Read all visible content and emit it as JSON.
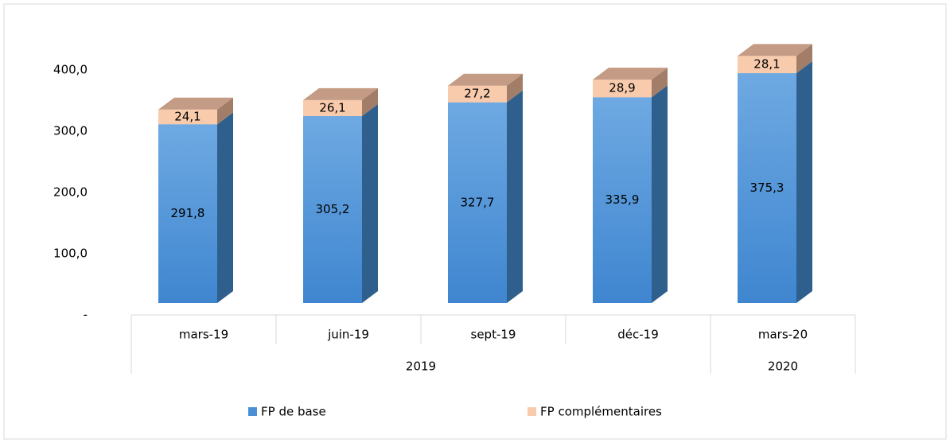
{
  "chart_data": {
    "type": "stacked-bar-3d",
    "categories": [
      "mars-19",
      "juin-19",
      "sept-19",
      "déc-19",
      "mars-20"
    ],
    "group_labels": [
      "2019",
      "2019",
      "2019",
      "2019",
      "2020"
    ],
    "series": [
      {
        "name": "FP de base",
        "color": "#5197dc",
        "side_color": "#2f5f8c",
        "top_color": "#6aa6df",
        "values": [
          291.8,
          305.2,
          327.7,
          335.9,
          375.3
        ],
        "value_labels": [
          "291,8",
          "305,2",
          "327,7",
          "335,9",
          "375,3"
        ]
      },
      {
        "name": "FP complémentaires",
        "color": "#f8cbad",
        "side_color": "#a27e68",
        "top_color": "#c49b84",
        "values": [
          24.1,
          26.1,
          27.2,
          28.9,
          28.1
        ],
        "value_labels": [
          "24,1",
          "26,1",
          "27,2",
          "28,9",
          "28,1"
        ]
      }
    ],
    "ylim": [
      0,
      400
    ],
    "yticks": [
      {
        "value": 0,
        "label": "-"
      },
      {
        "value": 100,
        "label": "100,0"
      },
      {
        "value": 200,
        "label": "200,0"
      },
      {
        "value": 300,
        "label": "300,0"
      },
      {
        "value": 400,
        "label": "400,0"
      }
    ],
    "grid": false,
    "legend": "bottom"
  }
}
